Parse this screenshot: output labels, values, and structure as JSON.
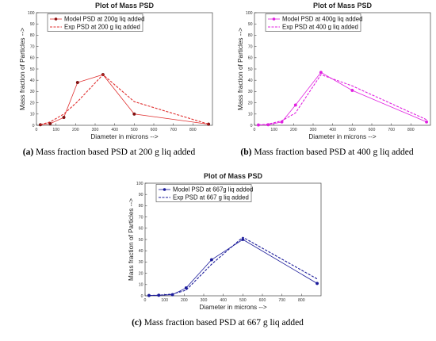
{
  "chart_data": [
    {
      "type": "line",
      "title": "Plot of Mass PSD",
      "xlabel": "Diameter in microns -->",
      "ylabel": "Mass fraction of Particles -->",
      "xlim": [
        0,
        900
      ],
      "ylim": [
        0,
        100
      ],
      "xticks": [
        0,
        100,
        200,
        300,
        400,
        500,
        600,
        700,
        800
      ],
      "yticks": [
        0,
        10,
        20,
        30,
        40,
        50,
        60,
        70,
        80,
        90,
        100
      ],
      "grid": false,
      "legend": "top-left",
      "color": "#e03030",
      "caption_label": "(a)",
      "caption_text": " Mass fraction based PSD at 200 g liq added",
      "series": [
        {
          "name": "Model PSD at 200g liq added",
          "style": "solid-marker",
          "x": [
            20,
            70,
            140,
            210,
            340,
            500,
            880
          ],
          "y": [
            0.5,
            1.5,
            7,
            38,
            45,
            10,
            1
          ]
        },
        {
          "name": "Exp PSD at 200 g liq added",
          "style": "dashed",
          "x": [
            20,
            70,
            140,
            210,
            340,
            500,
            880
          ],
          "y": [
            0.5,
            3,
            10,
            21,
            45,
            21,
            1
          ]
        }
      ]
    },
    {
      "type": "line",
      "title": "Plot of Mass PSD",
      "xlabel": "Diameter in microns -->",
      "ylabel": "Mass fraction of Particles -->",
      "xlim": [
        0,
        900
      ],
      "ylim": [
        0,
        100
      ],
      "xticks": [
        0,
        100,
        200,
        300,
        400,
        500,
        600,
        700,
        800
      ],
      "yticks": [
        0,
        10,
        20,
        30,
        40,
        50,
        60,
        70,
        80,
        90,
        100
      ],
      "grid": false,
      "legend": "top-left",
      "color": "#e020e0",
      "caption_label": "(b)",
      "caption_text": " Mass fraction based PSD at 400 g liq added",
      "series": [
        {
          "name": "Model PSD at 400g liq added",
          "style": "solid-marker",
          "x": [
            20,
            70,
            140,
            210,
            340,
            500,
            880
          ],
          "y": [
            0.3,
            0.5,
            3,
            18,
            47,
            31,
            3
          ]
        },
        {
          "name": "Exp PSD at 400 g liq added",
          "style": "dashed",
          "x": [
            20,
            70,
            140,
            210,
            340,
            500,
            880
          ],
          "y": [
            0.3,
            1,
            4,
            11,
            45,
            35,
            5
          ]
        }
      ]
    },
    {
      "type": "line",
      "title": "Plot of Mass PSD",
      "xlabel": "Diameter in microns -->",
      "ylabel": "Mass fraction of Particles -->",
      "xlim": [
        0,
        900
      ],
      "ylim": [
        0,
        100
      ],
      "xticks": [
        0,
        100,
        200,
        300,
        400,
        500,
        600,
        700,
        800
      ],
      "yticks": [
        0,
        10,
        20,
        30,
        40,
        50,
        60,
        70,
        80,
        90,
        100
      ],
      "grid": false,
      "legend": "top-left",
      "color": "#1a1a9a",
      "caption_label": "(c)",
      "caption_text": " Mass fraction based PSD at 667 g liq added",
      "series": [
        {
          "name": "Model PSD at 667g liq added",
          "style": "solid-marker",
          "x": [
            20,
            70,
            140,
            210,
            340,
            500,
            880
          ],
          "y": [
            0.3,
            0.5,
            1,
            7,
            32,
            50,
            11
          ]
        },
        {
          "name": "Exp PSD at 667 g liq added",
          "style": "dashed",
          "x": [
            20,
            70,
            140,
            210,
            340,
            500,
            880
          ],
          "y": [
            0.3,
            0.5,
            1.5,
            5,
            28,
            52,
            15
          ]
        }
      ]
    }
  ]
}
